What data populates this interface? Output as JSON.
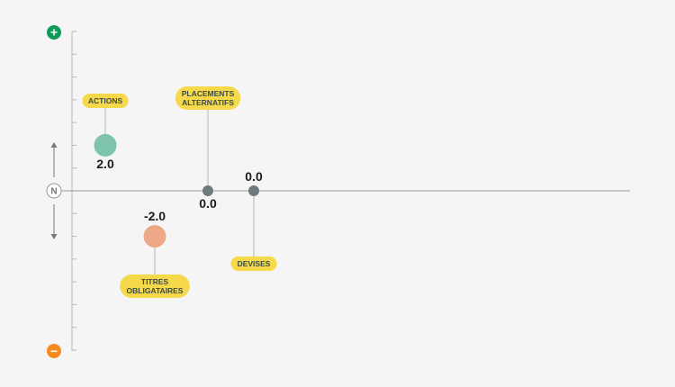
{
  "chart_data": {
    "type": "scatter",
    "title": "",
    "xlabel": "",
    "ylabel": "",
    "ylim": [
      -7,
      7
    ],
    "scale_labels": {
      "top": "+",
      "neutral": "N",
      "bottom": "−"
    },
    "categories": [
      "ACTIONS",
      "TITRES OBLIGATAIRES",
      "PLACEMENTS ALTERNATIFS",
      "DEVISES"
    ],
    "values": [
      2.0,
      -2.0,
      0.0,
      0.0
    ],
    "value_labels": [
      "2.0",
      "-2.0",
      "0.0",
      "0.0"
    ],
    "points": [
      {
        "category": "ACTIONS",
        "label_lines": [
          "ACTIONS"
        ],
        "value": 2.0,
        "value_label": "2.0",
        "color": "#7ec4ad",
        "size": "large",
        "label_position": "top",
        "value_position": "below"
      },
      {
        "category": "TITRES OBLIGATAIRES",
        "label_lines": [
          "TITRES",
          "OBLIGATAIRES"
        ],
        "value": -2.0,
        "value_label": "-2.0",
        "color": "#eda987",
        "size": "large",
        "label_position": "bottom",
        "value_position": "above"
      },
      {
        "category": "PLACEMENTS ALTERNATIFS",
        "label_lines": [
          "PLACEMENTS",
          "ALTERNATIFS"
        ],
        "value": 0.0,
        "value_label": "0.0",
        "color": "#6f7a7e",
        "size": "small",
        "label_position": "top",
        "value_position": "below"
      },
      {
        "category": "DEVISES",
        "label_lines": [
          "DEVISES"
        ],
        "value": 0.0,
        "value_label": "0.0",
        "color": "#6f7a7e",
        "size": "small",
        "label_position": "bottom",
        "value_position": "above"
      }
    ],
    "colors": {
      "positive_marker": "#0f9a5c",
      "negative_marker": "#f58a1f",
      "label_pill": "#f5d94b",
      "label_text": "#3d4b45",
      "axis": "#9a9a9a"
    }
  }
}
